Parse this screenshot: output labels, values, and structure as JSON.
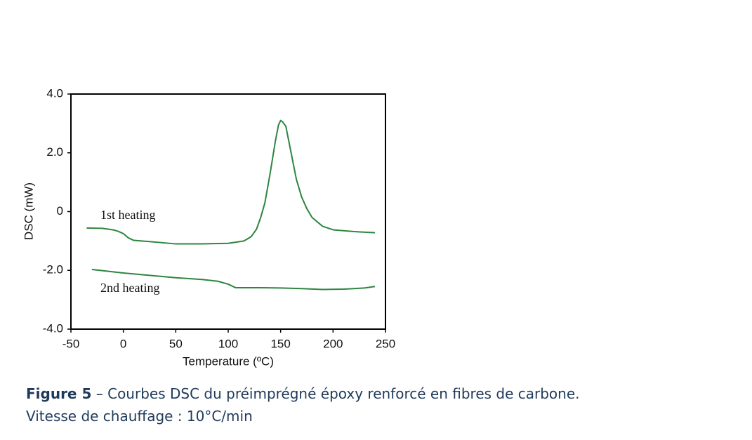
{
  "chart_data": {
    "type": "line",
    "x_label": "Temperature (ºC)",
    "y_label": "DSC (mW)",
    "xlim": [
      -50,
      250
    ],
    "xticks": [
      -50,
      0,
      50,
      100,
      150,
      200,
      250
    ],
    "ylim": [
      -4,
      4
    ],
    "yticks": [
      {
        "value": -4,
        "label": "-4.0"
      },
      {
        "value": -2,
        "label": "-2.0"
      },
      0,
      {
        "value": 2,
        "label": "2.0"
      },
      {
        "value": 4,
        "label": "4.0"
      }
    ],
    "series": [
      {
        "name": "1st heating",
        "color": "#2e8540",
        "x": [
          -35,
          -20,
          -10,
          -5,
          0,
          5,
          10,
          25,
          50,
          75,
          100,
          115,
          122,
          127,
          131,
          135,
          140,
          145,
          148,
          150,
          152,
          155,
          160,
          165,
          170,
          175,
          180,
          190,
          200,
          220,
          240
        ],
        "values": [
          -0.56,
          -0.57,
          -0.62,
          -0.67,
          -0.75,
          -0.9,
          -0.98,
          -1.02,
          -1.1,
          -1.1,
          -1.08,
          -1.0,
          -0.85,
          -0.6,
          -0.2,
          0.3,
          1.3,
          2.4,
          2.95,
          3.1,
          3.05,
          2.9,
          2.0,
          1.1,
          0.5,
          0.1,
          -0.2,
          -0.5,
          -0.62,
          -0.68,
          -0.72
        ]
      },
      {
        "name": "2nd heating",
        "color": "#2e8540",
        "x": [
          -30,
          0,
          25,
          50,
          75,
          90,
          100,
          107,
          130,
          150,
          170,
          190,
          210,
          230,
          240
        ],
        "values": [
          -1.97,
          -2.09,
          -2.17,
          -2.25,
          -2.31,
          -2.37,
          -2.47,
          -2.59,
          -2.59,
          -2.6,
          -2.62,
          -2.65,
          -2.64,
          -2.6,
          -2.55
        ]
      }
    ],
    "caption_label": "Figure 5",
    "caption": "– Courbes DSC du préimprégné époxy renforcé en fibres de carbone.",
    "caption_line2": "Vitesse de chauffage : 10°C/min"
  }
}
